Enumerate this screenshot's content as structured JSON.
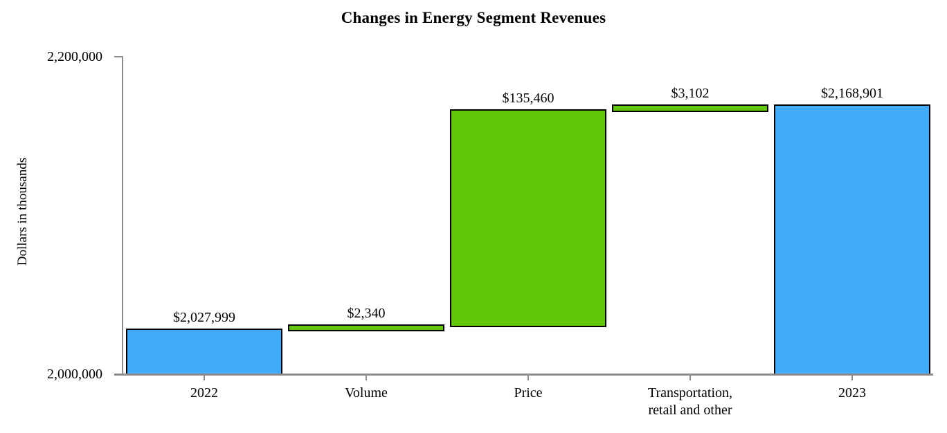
{
  "title": "Changes in Energy Segment Revenues",
  "chart_data": {
    "type": "bar",
    "subtype": "waterfall",
    "title": "Changes in Energy Segment Revenues",
    "xlabel": "",
    "ylabel": "Dollars in thousands",
    "ylim": [
      2000000,
      2200000
    ],
    "yticks": [
      {
        "value": 2000000,
        "label": "2,000,000"
      },
      {
        "value": 2200000,
        "label": "2,200,000"
      }
    ],
    "grid": false,
    "legend": "none",
    "colors": {
      "total_bar": "#41abfa",
      "increase_bar": "#63c709",
      "bar_border": "#000000",
      "axis": "#8c8c8c",
      "text": "#000000",
      "background": "#ffffff"
    },
    "categories": [
      "2022",
      "Volume",
      "Price",
      "Transportation, retail and other",
      "2023"
    ],
    "bars": [
      {
        "category": "2022",
        "category_lines": [
          "2022"
        ],
        "kind": "total",
        "value": 2027999,
        "label": "$2,027,999",
        "color": "#41abfa"
      },
      {
        "category": "Volume",
        "category_lines": [
          "Volume"
        ],
        "kind": "increase",
        "value": 2340,
        "label": "$2,340",
        "color": "#63c709"
      },
      {
        "category": "Price",
        "category_lines": [
          "Price"
        ],
        "kind": "increase",
        "value": 135460,
        "label": "$135,460",
        "color": "#63c709"
      },
      {
        "category": "Transportation, retail and other",
        "category_lines": [
          "Transportation,",
          "retail and other"
        ],
        "kind": "increase",
        "value": 3102,
        "label": "$3,102",
        "color": "#63c709"
      },
      {
        "category": "2023",
        "category_lines": [
          "2023"
        ],
        "kind": "total",
        "value": 2168901,
        "label": "$2,168,901",
        "color": "#41abfa"
      }
    ]
  }
}
